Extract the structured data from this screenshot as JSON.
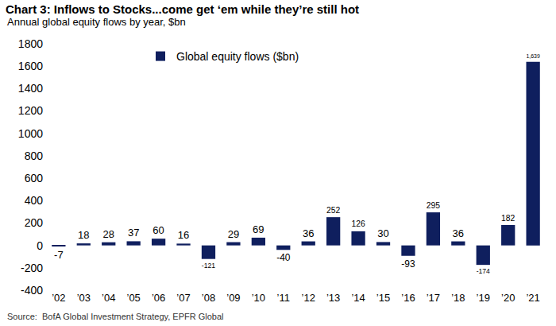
{
  "chart_data": {
    "type": "bar",
    "title": "Chart 3: Inflows to Stocks...come get ‘em while they’re still hot",
    "subtitle": "Annual global equity flows by year, $bn",
    "source": "Source:  BofA Global Investment Strategy, EPFR Global",
    "categories": [
      "’02",
      "’03",
      "’04",
      "’05",
      "’06",
      "’07",
      "’08",
      "’09",
      "’10",
      "’11",
      "’12",
      "’13",
      "’14",
      "’15",
      "’16",
      "’17",
      "’18",
      "’19",
      "’20",
      "’21"
    ],
    "series": [
      {
        "name": "Global equity flows ($bn)",
        "color": "#0f1f5e",
        "values": [
          -7,
          18,
          28,
          37,
          60,
          16,
          -121,
          29,
          69,
          -40,
          36,
          252,
          126,
          30,
          -93,
          295,
          36,
          -174,
          182,
          1639
        ],
        "value_labels": [
          "-7",
          "18",
          "28",
          "37",
          "60",
          "16",
          "-121",
          "29",
          "69",
          "-40",
          "36",
          "252",
          "126",
          "30",
          "-93",
          "295",
          "36",
          "-174",
          "182",
          "1,639"
        ]
      }
    ],
    "ylim": [
      -400,
      1800
    ],
    "yticks": [
      -400,
      -200,
      0,
      200,
      400,
      600,
      800,
      1000,
      1200,
      1400,
      1600,
      1800
    ],
    "grid": false,
    "legend": "upper left",
    "data_labels": true
  }
}
